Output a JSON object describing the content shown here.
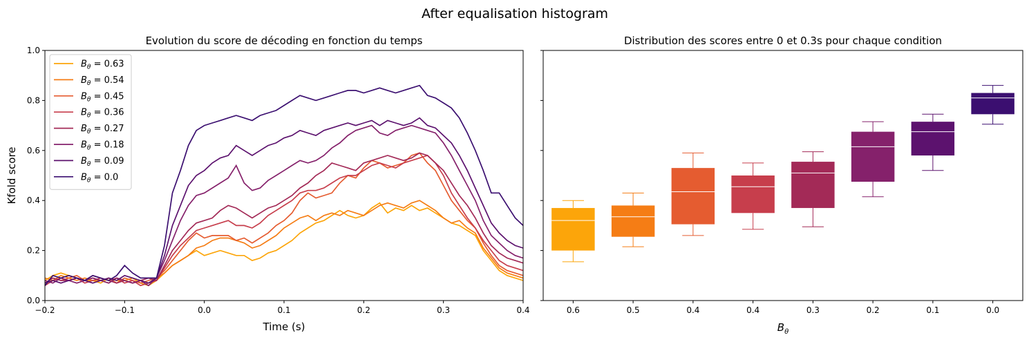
{
  "figure_title": "After equalisation histogram",
  "chart_data": [
    {
      "type": "line",
      "title": "Evolution du score de décoding en fonction du temps",
      "xlabel": "Time (s)",
      "ylabel": "Kfold score",
      "xlim": [
        -0.2,
        0.4
      ],
      "ylim": [
        0.0,
        1.0
      ],
      "xticks": [
        "−0.2",
        "−0.1",
        "0.0",
        "0.1",
        "0.2",
        "0.3",
        "0.4"
      ],
      "yticks": [
        "0.0",
        "0.2",
        "0.4",
        "0.6",
        "0.8",
        "1.0"
      ],
      "legend_position": "top-left",
      "grid": false,
      "x": [
        -0.2,
        -0.19,
        -0.18,
        -0.17,
        -0.16,
        -0.15,
        -0.14,
        -0.13,
        -0.12,
        -0.11,
        -0.1,
        -0.09,
        -0.08,
        -0.07,
        -0.06,
        -0.05,
        -0.04,
        -0.03,
        -0.02,
        -0.01,
        0.0,
        0.01,
        0.02,
        0.03,
        0.04,
        0.05,
        0.06,
        0.07,
        0.08,
        0.09,
        0.1,
        0.11,
        0.12,
        0.13,
        0.14,
        0.15,
        0.16,
        0.17,
        0.18,
        0.19,
        0.2,
        0.21,
        0.22,
        0.23,
        0.24,
        0.25,
        0.26,
        0.27,
        0.28,
        0.29,
        0.3,
        0.31,
        0.32,
        0.33,
        0.34,
        0.35,
        0.36,
        0.37,
        0.38,
        0.39,
        0.4
      ],
      "series": [
        {
          "name": "0.63",
          "color": "#fca50a",
          "values": [
            0.08,
            0.1,
            0.11,
            0.1,
            0.09,
            0.08,
            0.08,
            0.07,
            0.09,
            0.08,
            0.08,
            0.09,
            0.07,
            0.06,
            0.08,
            0.11,
            0.14,
            0.16,
            0.18,
            0.2,
            0.18,
            0.19,
            0.2,
            0.19,
            0.18,
            0.18,
            0.16,
            0.17,
            0.19,
            0.2,
            0.22,
            0.24,
            0.27,
            0.29,
            0.31,
            0.32,
            0.34,
            0.36,
            0.34,
            0.33,
            0.34,
            0.37,
            0.39,
            0.35,
            0.37,
            0.36,
            0.38,
            0.36,
            0.37,
            0.35,
            0.33,
            0.31,
            0.3,
            0.28,
            0.26,
            0.2,
            0.16,
            0.12,
            0.1,
            0.09,
            0.08
          ]
        },
        {
          "name": "0.54",
          "color": "#f57d15",
          "values": [
            0.09,
            0.08,
            0.1,
            0.09,
            0.08,
            0.09,
            0.08,
            0.08,
            0.07,
            0.09,
            0.08,
            0.07,
            0.08,
            0.07,
            0.09,
            0.11,
            0.14,
            0.16,
            0.18,
            0.21,
            0.22,
            0.24,
            0.25,
            0.25,
            0.24,
            0.23,
            0.21,
            0.22,
            0.24,
            0.26,
            0.29,
            0.31,
            0.33,
            0.34,
            0.32,
            0.34,
            0.35,
            0.34,
            0.36,
            0.35,
            0.34,
            0.36,
            0.38,
            0.39,
            0.38,
            0.37,
            0.39,
            0.4,
            0.38,
            0.36,
            0.33,
            0.31,
            0.32,
            0.29,
            0.27,
            0.21,
            0.17,
            0.13,
            0.11,
            0.1,
            0.09
          ]
        },
        {
          "name": "0.45",
          "color": "#e55c30",
          "values": [
            0.07,
            0.09,
            0.08,
            0.09,
            0.1,
            0.08,
            0.09,
            0.08,
            0.09,
            0.07,
            0.09,
            0.08,
            0.07,
            0.08,
            0.09,
            0.12,
            0.16,
            0.2,
            0.24,
            0.27,
            0.25,
            0.26,
            0.26,
            0.26,
            0.24,
            0.25,
            0.23,
            0.25,
            0.27,
            0.3,
            0.32,
            0.35,
            0.4,
            0.43,
            0.41,
            0.42,
            0.43,
            0.47,
            0.5,
            0.49,
            0.53,
            0.56,
            0.55,
            0.53,
            0.54,
            0.55,
            0.58,
            0.59,
            0.55,
            0.52,
            0.46,
            0.4,
            0.36,
            0.32,
            0.29,
            0.23,
            0.18,
            0.14,
            0.12,
            0.11,
            0.1
          ]
        },
        {
          "name": "0.36",
          "color": "#c73e4c",
          "values": [
            0.06,
            0.08,
            0.09,
            0.08,
            0.09,
            0.07,
            0.08,
            0.09,
            0.08,
            0.09,
            0.07,
            0.08,
            0.06,
            0.07,
            0.08,
            0.13,
            0.18,
            0.22,
            0.25,
            0.28,
            0.29,
            0.3,
            0.31,
            0.32,
            0.3,
            0.3,
            0.29,
            0.31,
            0.34,
            0.36,
            0.38,
            0.4,
            0.43,
            0.44,
            0.44,
            0.45,
            0.47,
            0.49,
            0.5,
            0.5,
            0.52,
            0.54,
            0.55,
            0.54,
            0.53,
            0.55,
            0.56,
            0.57,
            0.58,
            0.55,
            0.5,
            0.43,
            0.38,
            0.33,
            0.29,
            0.24,
            0.2,
            0.16,
            0.14,
            0.13,
            0.12
          ]
        },
        {
          "name": "0.27",
          "color": "#a32a57",
          "values": [
            0.07,
            0.09,
            0.08,
            0.08,
            0.09,
            0.08,
            0.1,
            0.09,
            0.08,
            0.07,
            0.08,
            0.07,
            0.08,
            0.09,
            0.08,
            0.14,
            0.2,
            0.24,
            0.28,
            0.31,
            0.32,
            0.33,
            0.36,
            0.38,
            0.37,
            0.35,
            0.33,
            0.35,
            0.37,
            0.38,
            0.4,
            0.42,
            0.45,
            0.47,
            0.5,
            0.52,
            0.55,
            0.54,
            0.53,
            0.52,
            0.55,
            0.56,
            0.57,
            0.58,
            0.57,
            0.56,
            0.57,
            0.59,
            0.58,
            0.55,
            0.52,
            0.47,
            0.42,
            0.38,
            0.33,
            0.27,
            0.22,
            0.19,
            0.17,
            0.16,
            0.15
          ]
        },
        {
          "name": "0.18",
          "color": "#85216b",
          "values": [
            0.08,
            0.07,
            0.09,
            0.08,
            0.07,
            0.08,
            0.09,
            0.08,
            0.07,
            0.09,
            0.08,
            0.07,
            0.08,
            0.06,
            0.09,
            0.16,
            0.24,
            0.32,
            0.38,
            0.42,
            0.43,
            0.45,
            0.47,
            0.49,
            0.54,
            0.47,
            0.44,
            0.45,
            0.48,
            0.5,
            0.52,
            0.54,
            0.56,
            0.55,
            0.56,
            0.58,
            0.61,
            0.63,
            0.66,
            0.68,
            0.69,
            0.7,
            0.67,
            0.66,
            0.68,
            0.69,
            0.7,
            0.69,
            0.68,
            0.67,
            0.63,
            0.58,
            0.52,
            0.46,
            0.4,
            0.32,
            0.26,
            0.23,
            0.2,
            0.18,
            0.17
          ]
        },
        {
          "name": "0.09",
          "color": "#5c126e",
          "values": [
            0.07,
            0.08,
            0.07,
            0.08,
            0.09,
            0.08,
            0.07,
            0.08,
            0.09,
            0.08,
            0.1,
            0.09,
            0.08,
            0.07,
            0.09,
            0.18,
            0.3,
            0.38,
            0.46,
            0.5,
            0.52,
            0.55,
            0.57,
            0.58,
            0.62,
            0.6,
            0.58,
            0.6,
            0.62,
            0.63,
            0.65,
            0.66,
            0.68,
            0.67,
            0.66,
            0.68,
            0.69,
            0.7,
            0.71,
            0.7,
            0.71,
            0.72,
            0.7,
            0.72,
            0.71,
            0.7,
            0.71,
            0.73,
            0.7,
            0.69,
            0.66,
            0.63,
            0.58,
            0.52,
            0.45,
            0.38,
            0.31,
            0.27,
            0.24,
            0.22,
            0.21
          ]
        },
        {
          "name": "0.0",
          "color": "#3b0f70",
          "values": [
            0.06,
            0.1,
            0.09,
            0.1,
            0.09,
            0.08,
            0.1,
            0.09,
            0.08,
            0.1,
            0.14,
            0.11,
            0.09,
            0.09,
            0.09,
            0.22,
            0.43,
            0.52,
            0.62,
            0.68,
            0.7,
            0.71,
            0.72,
            0.73,
            0.74,
            0.73,
            0.72,
            0.74,
            0.75,
            0.76,
            0.78,
            0.8,
            0.82,
            0.81,
            0.8,
            0.81,
            0.82,
            0.83,
            0.84,
            0.84,
            0.83,
            0.84,
            0.85,
            0.84,
            0.83,
            0.84,
            0.85,
            0.86,
            0.82,
            0.81,
            0.79,
            0.77,
            0.73,
            0.67,
            0.6,
            0.52,
            0.43,
            0.43,
            0.38,
            0.33,
            0.3
          ]
        }
      ]
    },
    {
      "type": "box",
      "title": "Distribution des scores entre 0 et 0.3s pour chaque condition",
      "xlabel": "Bθ",
      "ylabel": "",
      "ylim": [
        0.0,
        1.0
      ],
      "grid": false,
      "categories": [
        "0.6",
        "0.5",
        "0.4",
        "0.4",
        "0.3",
        "0.2",
        "0.1",
        "0.0"
      ],
      "boxes": [
        {
          "color": "#fca50a",
          "whislo": 0.155,
          "q1": 0.2,
          "med": 0.32,
          "q3": 0.37,
          "whishi": 0.4
        },
        {
          "color": "#f57d15",
          "whislo": 0.215,
          "q1": 0.255,
          "med": 0.335,
          "q3": 0.38,
          "whishi": 0.43
        },
        {
          "color": "#e55c30",
          "whislo": 0.26,
          "q1": 0.305,
          "med": 0.435,
          "q3": 0.53,
          "whishi": 0.59
        },
        {
          "color": "#c73e4c",
          "whislo": 0.285,
          "q1": 0.35,
          "med": 0.455,
          "q3": 0.5,
          "whishi": 0.55
        },
        {
          "color": "#a32a57",
          "whislo": 0.295,
          "q1": 0.37,
          "med": 0.51,
          "q3": 0.555,
          "whishi": 0.595
        },
        {
          "color": "#85216b",
          "whislo": 0.415,
          "q1": 0.475,
          "med": 0.615,
          "q3": 0.675,
          "whishi": 0.715
        },
        {
          "color": "#5c126e",
          "whislo": 0.52,
          "q1": 0.58,
          "med": 0.675,
          "q3": 0.715,
          "whishi": 0.745
        },
        {
          "color": "#3b0f70",
          "whislo": 0.705,
          "q1": 0.745,
          "med": 0.81,
          "q3": 0.83,
          "whishi": 0.86
        }
      ]
    }
  ]
}
